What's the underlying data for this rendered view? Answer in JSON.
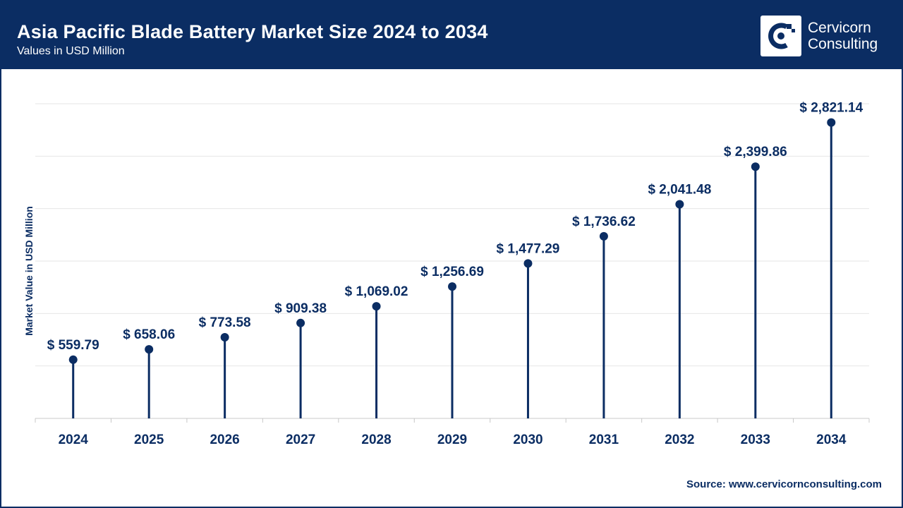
{
  "header": {
    "title": "Asia Pacific Blade Battery Market Size 2024 to 2034",
    "subtitle": "Values in USD Million"
  },
  "logo": {
    "line1": "Cervicorn",
    "line2": "Consulting",
    "icon": "cervicorn-logo-icon"
  },
  "source": "Source: www.cervicornconsulting.com",
  "colors": {
    "primary": "#0b2d63",
    "grid": "#e6e6e6",
    "axis": "#c8c8c8"
  },
  "chart_data": {
    "type": "lollipop",
    "title": "Asia Pacific Blade Battery Market Size 2024 to 2034",
    "subtitle": "Values in USD Million",
    "xlabel": "",
    "ylabel": "Market Value in USD Million",
    "ylim": [
      0,
      3000
    ],
    "grid": true,
    "value_prefix": "$ ",
    "categories": [
      "2024",
      "2025",
      "2026",
      "2027",
      "2028",
      "2029",
      "2030",
      "2031",
      "2032",
      "2033",
      "2034"
    ],
    "values": [
      559.79,
      658.06,
      773.58,
      909.38,
      1069.02,
      1256.69,
      1477.29,
      1736.62,
      2041.48,
      2399.86,
      2821.14
    ],
    "labels": [
      "$ 559.79",
      "$ 658.06",
      "$ 773.58",
      "$ 909.38",
      "$ 1,069.02",
      "$ 1,256.69",
      "$ 1,477.29",
      "$ 1,736.62",
      "$ 2,041.48",
      "$ 2,399.86",
      "$ 2,821.14"
    ]
  }
}
